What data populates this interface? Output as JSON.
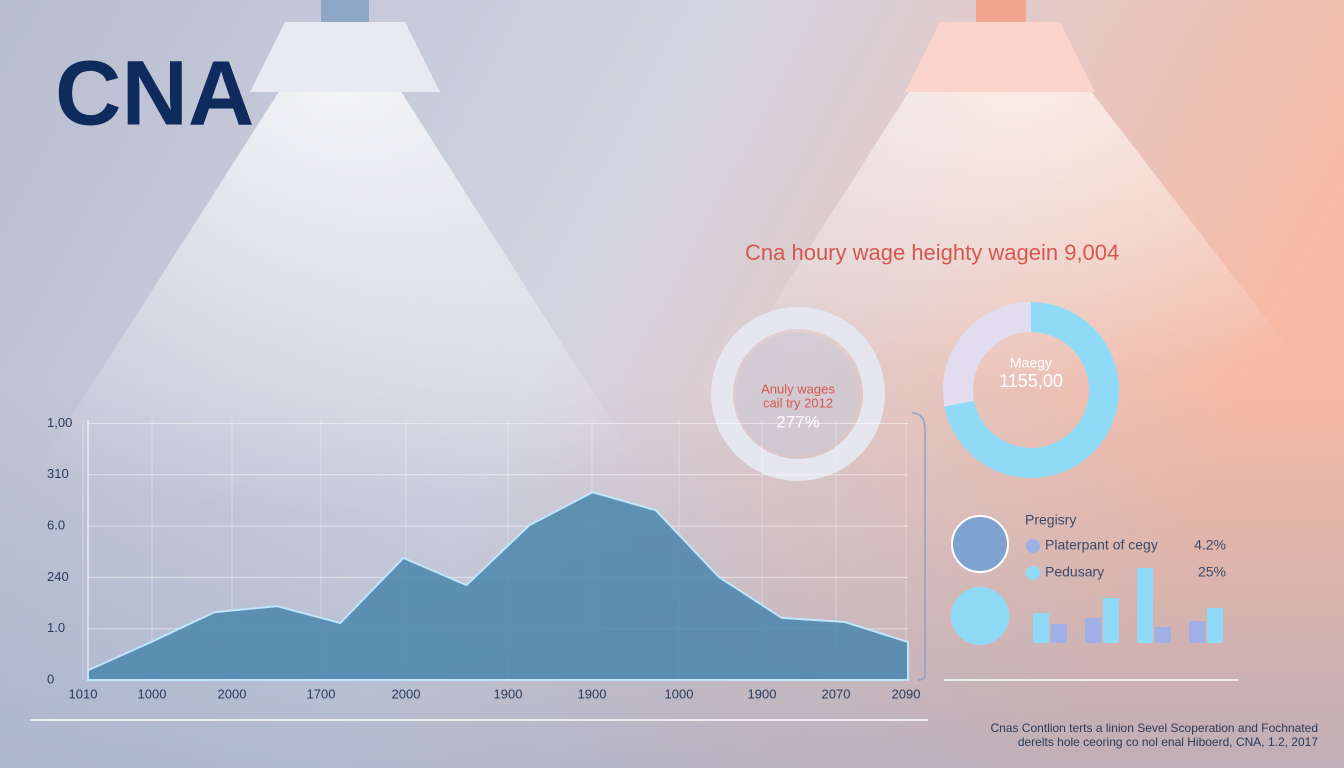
{
  "logo": "CNA",
  "headline": "Cna houry wage heighty wagein 9,004",
  "area_chart": {
    "type": "area",
    "y_labels": [
      "0",
      "1.0",
      "240",
      "6.0",
      "310",
      "1,00"
    ],
    "x_labels": [
      "1010",
      "1000",
      "2000",
      "1700",
      "2000",
      "1900",
      "1900",
      "1000",
      "1900",
      "2070",
      "2090"
    ],
    "values": [
      0.19,
      0.74,
      1.32,
      1.44,
      1.11,
      2.38,
      1.85,
      3.02,
      3.66,
      3.31,
      2.01,
      1.21,
      1.13,
      0.74
    ],
    "color": "#4a86ad"
  },
  "ring": {
    "lines": [
      "Anuly wages",
      "cail try 2012"
    ],
    "value_text": "277%"
  },
  "donut": {
    "lines": [
      "Maegy",
      "1155,00"
    ],
    "values": [
      28,
      72
    ],
    "colors": [
      "#e2dcef",
      "#8fdbf7"
    ]
  },
  "legend": {
    "title": "Pregisry",
    "items": [
      {
        "label": "Platerpant of cegy",
        "value": "4.2%",
        "color": "#9eb0e6"
      },
      {
        "label": "Pedusary",
        "value": "25%",
        "color": "#8fdbf7"
      }
    ]
  },
  "bars": {
    "pairs": [
      [
        30,
        19
      ],
      [
        25,
        45
      ],
      [
        75,
        16
      ],
      [
        22,
        35
      ]
    ],
    "colors": [
      [
        "#8fdbf7",
        "#9eb0e6"
      ],
      [
        "#9eb0e6",
        "#8fdbf7"
      ],
      [
        "#8fdbf7",
        "#9eb0e6"
      ],
      [
        "#9eb0e6",
        "#8fdbf7"
      ]
    ]
  },
  "footnote": [
    "Cnas Contlion terts a linion Sevel Scoperation and Fochnated",
    "derelts hole ceoring co nol enal Hiboerd, CNA, 1.2, 2017"
  ]
}
